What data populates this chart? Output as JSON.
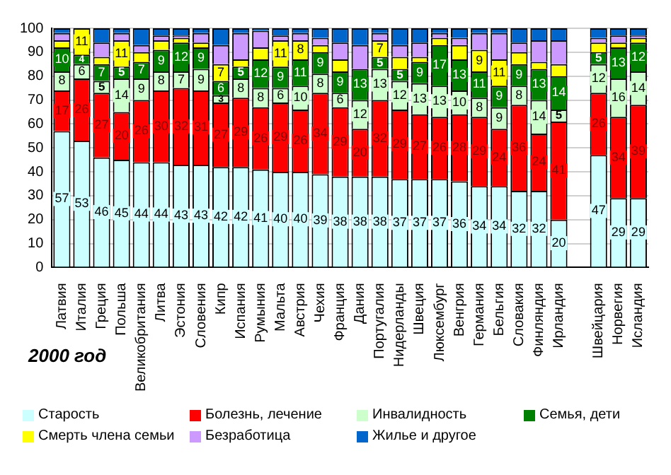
{
  "chart_data": {
    "type": "bar",
    "stacked": true,
    "title": "2000 год",
    "categories": [
      "Латвия",
      "Италия",
      "Греция",
      "Польша",
      "Великобритания",
      "Литва",
      "Эстония",
      "Словения",
      "Кипр",
      "Испания",
      "Румыния",
      "Мальта",
      "Австрия",
      "Чехия",
      "Франция",
      "Дания",
      "Португалия",
      "Нидерланды",
      "Швеция",
      "Люксембург",
      "Венгрия",
      "Германия",
      "Бельгия",
      "Словакия",
      "Финляндия",
      "Ирландия",
      null,
      "Швейцария",
      "Норвегия",
      "Исландия"
    ],
    "series": [
      {
        "name": "Старость",
        "color": "#ccffff",
        "values": [
          57,
          53,
          46,
          45,
          44,
          44,
          43,
          43,
          42,
          42,
          41,
          40,
          40,
          39,
          38,
          38,
          38,
          37,
          37,
          37,
          36,
          34,
          34,
          32,
          32,
          20,
          null,
          47,
          29,
          29
        ],
        "value_labels": [
          "57",
          "53",
          "46",
          "45",
          "44",
          "44",
          "43",
          "43",
          "42",
          "42",
          "41",
          "40",
          "40",
          "39",
          "38",
          "38",
          "38",
          "37",
          "37",
          "37",
          "36",
          "34",
          "34",
          "32",
          "32",
          "20",
          null,
          "47",
          "29",
          "29"
        ]
      },
      {
        "name": "Болезнь, лечение",
        "color": "#ff0000",
        "values": [
          17,
          26,
          27,
          20,
          26,
          30,
          32,
          31,
          27,
          29,
          26,
          29,
          26,
          34,
          29,
          20,
          32,
          29,
          27,
          26,
          28,
          29,
          24,
          36,
          24,
          41,
          null,
          26,
          34,
          39
        ],
        "value_labels": [
          "17",
          "26",
          "27",
          "20",
          "26",
          "30",
          "32",
          "31",
          "27",
          "29",
          "26",
          "29",
          "26",
          "34",
          "29",
          "20",
          "32",
          "29",
          "27",
          "26",
          "28",
          "29",
          "24",
          "36",
          "24",
          "41",
          null,
          "26",
          "34",
          "39"
        ]
      },
      {
        "name": "Инвалидность",
        "color": "#ccffcc",
        "values": [
          8,
          6,
          5,
          14,
          9,
          8,
          7,
          9,
          3,
          8,
          8,
          6,
          10,
          8,
          6,
          12,
          13,
          12,
          13,
          13,
          10,
          8,
          9,
          8,
          14,
          5,
          null,
          12,
          16,
          14
        ],
        "value_labels": [
          "8",
          "6",
          "5",
          "14",
          "9",
          "8",
          "7",
          "9",
          "3",
          "8",
          "8",
          "6",
          "10",
          "8",
          "6",
          "12",
          "13",
          "12",
          "13",
          "13",
          "10",
          "8",
          "9",
          "8",
          "14",
          "5",
          null,
          "12",
          "16",
          "14"
        ]
      },
      {
        "name": "Семья, дети",
        "color": "#008000",
        "values": [
          10,
          4,
          7,
          5,
          7,
          9,
          12,
          9,
          6,
          5,
          12,
          9,
          11,
          9,
          9,
          13,
          5,
          5,
          9,
          17,
          13,
          11,
          9,
          9,
          13,
          14,
          null,
          5,
          13,
          12
        ],
        "value_labels": [
          "10",
          "4",
          "7",
          "5",
          "7",
          "9",
          "12",
          "9",
          "6",
          "5",
          "12",
          "9",
          "11",
          "9",
          "9",
          "13",
          "5",
          "5",
          "9",
          "17",
          "13",
          "11",
          "9",
          "9",
          "13",
          "14",
          null,
          "5",
          "13",
          "12"
        ]
      },
      {
        "name": "Смерть члена семьи",
        "color": "#ffff00",
        "values": [
          3,
          11,
          3,
          11,
          4,
          4,
          2,
          2,
          7,
          3,
          5,
          11,
          8,
          3,
          5,
          0,
          7,
          5,
          2,
          3,
          6,
          9,
          11,
          5,
          3,
          5,
          null,
          4,
          2,
          2
        ],
        "value_labels": [
          null,
          "11",
          null,
          "11",
          null,
          null,
          null,
          null,
          "7",
          null,
          null,
          "11",
          "8",
          null,
          null,
          null,
          "7",
          null,
          null,
          null,
          null,
          "9",
          "11",
          null,
          null,
          null,
          null,
          null,
          null,
          null
        ]
      },
      {
        "name": "Безработица",
        "color": "#cc99ff",
        "values": [
          3,
          0,
          6,
          3,
          3,
          2,
          1,
          4,
          8,
          11,
          7,
          2,
          3,
          3,
          7,
          10,
          3,
          5,
          6,
          2,
          3,
          7,
          11,
          4,
          9,
          10,
          null,
          2,
          3,
          1
        ]
      },
      {
        "name": "Жилье и другое",
        "color": "#0066cc",
        "values": [
          2,
          0,
          6,
          2,
          7,
          3,
          3,
          2,
          7,
          2,
          1,
          3,
          2,
          4,
          6,
          7,
          2,
          7,
          6,
          2,
          4,
          2,
          2,
          6,
          5,
          5,
          null,
          4,
          3,
          3
        ]
      }
    ],
    "ylim": [
      0,
      100
    ],
    "yticks": [
      0,
      10,
      20,
      30,
      40,
      50,
      60,
      70,
      80,
      90,
      100
    ],
    "grid": "y",
    "legend": "bottom"
  }
}
